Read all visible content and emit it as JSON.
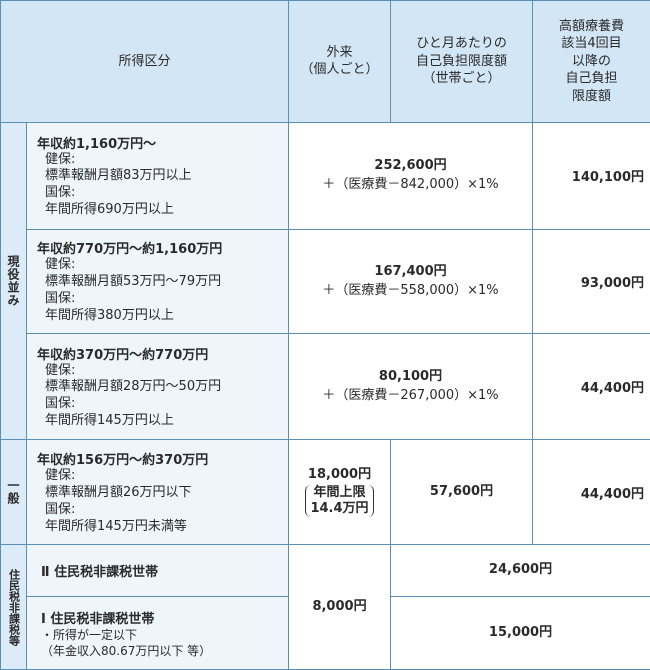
{
  "header": {
    "income_category": "所得区分",
    "outpatient": [
      "外来",
      "（個人ごと）"
    ],
    "monthly_limit": [
      "ひと月あたりの",
      "自己負担限度額",
      "（世帯ごと）"
    ],
    "high_cost": [
      "高額療養費",
      "該当4回目",
      "以降の",
      "自己負担",
      "限度額"
    ]
  },
  "groups": {
    "genekinami": "現役並み",
    "ippan": "一般",
    "jumin": "住民税非課税等"
  },
  "rows": [
    {
      "title": "年収約1,160万円～",
      "lines": [
        "健保:",
        "標準報酬月額83万円以上",
        "国保:",
        "年間所得690万円以上"
      ],
      "amount": "252,600円",
      "formula": "＋（医療費－842,000）×1%",
      "fourth": "140,100円"
    },
    {
      "title": "年収約770万円～約1,160万円",
      "lines": [
        "健保:",
        "標準報酬月額53万円～79万円",
        "国保:",
        "年間所得380万円以上"
      ],
      "amount": "167,400円",
      "formula": "＋（医療費－558,000）×1%",
      "fourth": "93,000円"
    },
    {
      "title": "年収約370万円～約770万円",
      "lines": [
        "健保:",
        "標準報酬月額28万円～50万円",
        "国保:",
        "年間所得145万円以上"
      ],
      "amount": "80,100円",
      "formula": "＋（医療費－267,000）×1%",
      "fourth": "44,400円"
    },
    {
      "title": "年収約156万円～約370万円",
      "lines": [
        "健保:",
        "標準報酬月額26万円以下",
        "国保:",
        "年間所得145万円未満等"
      ],
      "outpatient_amount": "18,000円",
      "outpatient_paren": [
        "年間上限",
        "14.4万円"
      ],
      "monthly": "57,600円",
      "fourth": "44,400円"
    }
  ],
  "low_income": {
    "type2": "Ⅱ 住民税非課税世帯",
    "type2_amount": "24,600円",
    "type1": "Ⅰ 住民税非課税世帯",
    "type1_notes": [
      "・所得が一定以下",
      "（年金収入80.67万円以下 等）"
    ],
    "type1_amount": "15,000円",
    "outpatient_amount": "8,000円"
  }
}
